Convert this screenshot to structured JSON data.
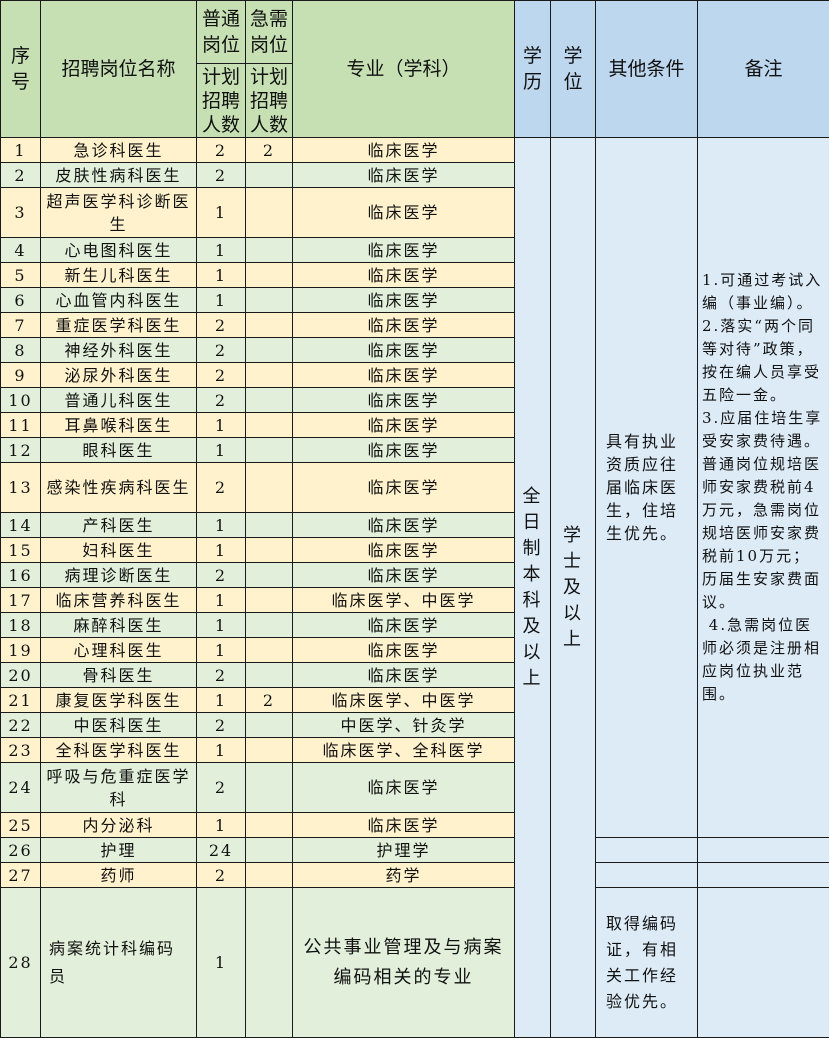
{
  "header": {
    "seq": "序号",
    "position": "招聘岗位名称",
    "regular_post": "普通岗位",
    "urgent_post": "急需岗位",
    "plan_count": "计划招聘人数",
    "major": "专业（学科）",
    "education": "学历",
    "degree": "学位",
    "other": "其他条件",
    "remarks": "备注"
  },
  "rows": [
    {
      "no": "1",
      "name": "急诊科医生",
      "regular": "2",
      "urgent": "2",
      "major": "临床医学"
    },
    {
      "no": "2",
      "name": "皮肤性病科医生",
      "regular": "2",
      "urgent": "",
      "major": "临床医学"
    },
    {
      "no": "3",
      "name": "超声医学科诊断医生",
      "regular": "1",
      "urgent": "",
      "major": "临床医学",
      "tall": true
    },
    {
      "no": "4",
      "name": "心电图科医生",
      "regular": "1",
      "urgent": "",
      "major": "临床医学"
    },
    {
      "no": "5",
      "name": "新生儿科医生",
      "regular": "1",
      "urgent": "",
      "major": "临床医学"
    },
    {
      "no": "6",
      "name": "心血管内科医生",
      "regular": "1",
      "urgent": "",
      "major": "临床医学"
    },
    {
      "no": "7",
      "name": "重症医学科医生",
      "regular": "2",
      "urgent": "",
      "major": "临床医学"
    },
    {
      "no": "8",
      "name": "神经外科医生",
      "regular": "2",
      "urgent": "",
      "major": "临床医学"
    },
    {
      "no": "9",
      "name": "泌尿外科医生",
      "regular": "2",
      "urgent": "",
      "major": "临床医学"
    },
    {
      "no": "10",
      "name": "普通儿科医生",
      "regular": "2",
      "urgent": "",
      "major": "临床医学"
    },
    {
      "no": "11",
      "name": "耳鼻喉科医生",
      "regular": "1",
      "urgent": "",
      "major": "临床医学"
    },
    {
      "no": "12",
      "name": "眼科医生",
      "regular": "1",
      "urgent": "",
      "major": "临床医学"
    },
    {
      "no": "13",
      "name": "感染性疾病科医生",
      "regular": "2",
      "urgent": "",
      "major": "临床医学",
      "tall": true
    },
    {
      "no": "14",
      "name": "产科医生",
      "regular": "1",
      "urgent": "",
      "major": "临床医学"
    },
    {
      "no": "15",
      "name": "妇科医生",
      "regular": "1",
      "urgent": "",
      "major": "临床医学"
    },
    {
      "no": "16",
      "name": "病理诊断医生",
      "regular": "2",
      "urgent": "",
      "major": "临床医学"
    },
    {
      "no": "17",
      "name": "临床营养科医生",
      "regular": "1",
      "urgent": "",
      "major": "临床医学、中医学"
    },
    {
      "no": "18",
      "name": "麻醉科医生",
      "regular": "1",
      "urgent": "",
      "major": "临床医学"
    },
    {
      "no": "19",
      "name": "心理科医生",
      "regular": "1",
      "urgent": "",
      "major": "临床医学"
    },
    {
      "no": "20",
      "name": "骨科医生",
      "regular": "2",
      "urgent": "",
      "major": "临床医学"
    },
    {
      "no": "21",
      "name": "康复医学科医生",
      "regular": "1",
      "urgent": "2",
      "major": "临床医学、中医学"
    },
    {
      "no": "22",
      "name": "中医科医生",
      "regular": "2",
      "urgent": "",
      "major": "中医学、针灸学"
    },
    {
      "no": "23",
      "name": "全科医学科医生",
      "regular": "1",
      "urgent": "",
      "major": "临床医学、全科医学"
    },
    {
      "no": "24",
      "name": "呼吸与危重症医学科",
      "regular": "2",
      "urgent": "",
      "major": "临床医学",
      "tall": true
    },
    {
      "no": "25",
      "name": "内分泌科",
      "regular": "1",
      "urgent": "",
      "major": "临床医学"
    },
    {
      "no": "26",
      "name": "护理",
      "regular": "24",
      "urgent": "",
      "major": "护理学"
    },
    {
      "no": "27",
      "name": "药师",
      "regular": "2",
      "urgent": "",
      "major": "药学"
    },
    {
      "no": "28",
      "name": "病案统计科编码员",
      "regular": "1",
      "urgent": "",
      "major": "公共事业管理及与病案编码相关的专业",
      "huge": true
    }
  ],
  "education_value": "全日制本科及以上",
  "degree_value": "学士及以上",
  "other_conditions_doctors": "具有执业资质应往届临床医生，住培生优先。",
  "other_conditions_coder": "取得编码证，有相关工作经验优先。",
  "remarks_doctors": [
    "1.可通过考试入编（事业编）。",
    "2.落实“两个同等对待”政策，按在编人员享受五险一金。",
    "3.应届住培生享受安家费待遇。普通岗位规培医师安家费税前4万元，急需岗位规培医师安家费税前10万元；历届生安家费面议。",
    " 4.急需岗位医师必须是注册相应岗位执业范围。"
  ],
  "colors": {
    "header_green": "#c6e0b4",
    "header_blue": "#bdd7ee",
    "row_cream": "#fff2cc",
    "row_green": "#e2efda",
    "body_blue": "#ddebf7"
  }
}
